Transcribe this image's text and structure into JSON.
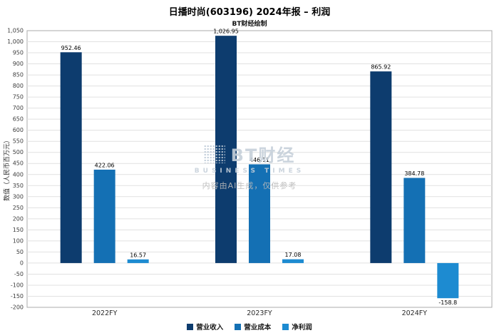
{
  "title": "日播时尚(603196) 2024年报 – 利润",
  "subtitle": "BT财经绘制",
  "watermark": {
    "brand": "BT财经",
    "brand_sub": "BUSINESS TIMES",
    "note": "内容由AI生成，仅供参考"
  },
  "chart_data": {
    "type": "bar",
    "title": "日播时尚(603196) 2024年报 – 利润",
    "subtitle": "BT财经绘制",
    "categories": [
      "2022FY",
      "2023FY",
      "2024FY"
    ],
    "series": [
      {
        "name": "营业收入",
        "color": "#0d3c6e",
        "values": [
          952.46,
          1026.95,
          865.92
        ],
        "labels": [
          "952.46",
          "1,026.95",
          "865.92"
        ]
      },
      {
        "name": "营业成本",
        "color": "#1470b4",
        "values": [
          422.06,
          446.11,
          384.78
        ],
        "labels": [
          "422.06",
          "446.11",
          "384.78"
        ]
      },
      {
        "name": "净利润",
        "color": "#1d8bd1",
        "values": [
          16.57,
          17.08,
          -158.8
        ],
        "labels": [
          "16.57",
          "17.08",
          "-158.8"
        ]
      }
    ],
    "xlabel": "",
    "ylabel": "数值（人民币百万元）",
    "ylim": [
      -200,
      1050
    ],
    "ytick_step": 50,
    "grid": true,
    "legend_position": "bottom"
  }
}
